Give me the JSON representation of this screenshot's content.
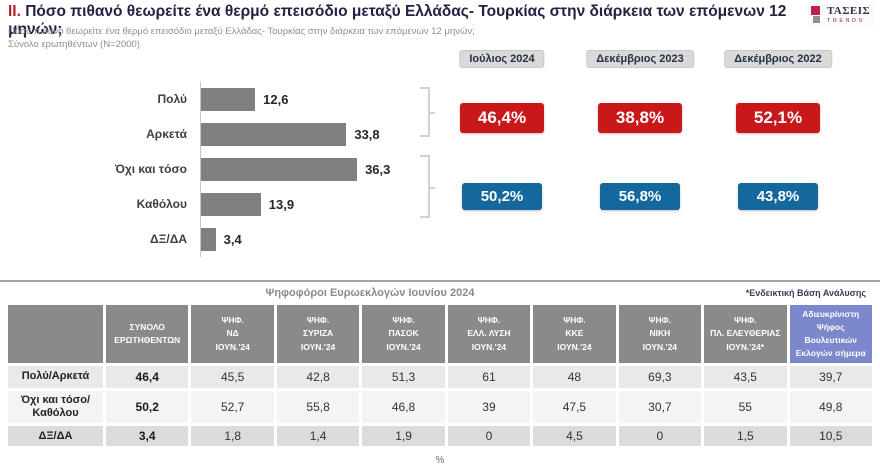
{
  "header": {
    "title_prefix": "II.",
    "title": "Πόσο πιθανό θεωρείτε ένα θερμό επεισόδιο μεταξύ Ελλάδας- Τουρκίας στην διάρκεια των επόμενων 12 μηνών;",
    "subtitle": "Πόσο πιθανό θεωρείτε ένα θερμό επεισόδιο μεταξύ Ελλάδας- Τουρκίας στην διάρκεια των επόμενων 12 μηνών;",
    "base_note": "Σύνολο ερωτηθέντων (N=2000)",
    "logo_title": "ΤΑΣΕΙΣ",
    "logo_subtitle": "TRENDS"
  },
  "chart_data": [
    {
      "type": "bar",
      "orientation": "horizontal",
      "categories": [
        "Πολύ",
        "Αρκετά",
        "Όχι και τόσο",
        "Καθόλου",
        "ΔΞ/ΔΑ"
      ],
      "values": [
        12.6,
        33.8,
        36.3,
        13.9,
        3.4
      ],
      "labels": [
        "12,6",
        "33,8",
        "36,3",
        "13,9",
        "3,4"
      ],
      "bar_color": "#7f7f7f",
      "xlim": [
        0,
        40
      ],
      "unit": "%",
      "groupings": [
        {
          "label": "Πολύ/Αρκετά",
          "sum": 46.4
        },
        {
          "label": "Όχι και τόσο/Καθόλου",
          "sum": 50.2
        }
      ]
    },
    {
      "type": "bar",
      "subtype": "kpi-badges",
      "categories": [
        "Ιούλιος 2024",
        "Δεκέμβριος 2023",
        "Δεκέμβριος 2022"
      ],
      "series": [
        {
          "name": "Πολύ/Αρκετά",
          "color": "#c9181a",
          "values": [
            46.4,
            38.8,
            52.1
          ],
          "labels": [
            "46,4%",
            "38,8%",
            "52,1%"
          ]
        },
        {
          "name": "Όχι και τόσο/Καθόλου",
          "color": "#15689c",
          "values": [
            50.2,
            56.8,
            43.8
          ],
          "labels": [
            "50,2%",
            "56,8%",
            "43,8%"
          ]
        }
      ]
    },
    {
      "type": "table",
      "title": "Ψηφοφόροι Ευρωεκλογών Ιουνίου 2024",
      "note": "*Ενδεικτική Βάση Ανάλυσης",
      "header_lines": [
        [
          "ΣΥΝΟΛΟ",
          "ΕΡΩΤΗΘΕΝΤΩΝ"
        ],
        [
          "ΨΗΦ.",
          "ΝΔ",
          "ΙΟΥΝ.'24"
        ],
        [
          "ΨΗΦ.",
          "ΣΥΡΙΖΑ",
          "ΙΟΥΝ.'24"
        ],
        [
          "ΨΗΦ.",
          "ΠΑΣΟΚ",
          "ΙΟΥΝ.'24"
        ],
        [
          "ΨΗΦ.",
          "ΕΛΛ. ΛΥΣΗ",
          "ΙΟΥΝ.'24"
        ],
        [
          "ΨΗΦ.",
          "ΚΚΕ",
          "ΙΟΥΝ.'24"
        ],
        [
          "ΨΗΦ.",
          "ΝΙΚΗ",
          "ΙΟΥΝ.'24"
        ],
        [
          "ΨΗΦ.",
          "ΠΛ. ΕΛΕΥΘΕΡΙΑΣ",
          "ΙΟΥΝ.'24*"
        ],
        [
          "Αδιευκρίνιστη",
          "Ψήφος",
          "Βουλευτικών",
          "Εκλογών σήμερα"
        ]
      ],
      "highlight_last_column": true,
      "highlight_color": "#7d87cb",
      "rows": [
        {
          "label": "Πολύ/Αρκετά",
          "values": [
            "46,4",
            "45,5",
            "42,8",
            "51,3",
            "61",
            "48",
            "69,3",
            "43,5",
            "39,7"
          ]
        },
        {
          "label": "Όχι και τόσο/Καθόλου",
          "values": [
            "50,2",
            "52,7",
            "55,8",
            "46,8",
            "39",
            "47,5",
            "30,7",
            "55",
            "49,8"
          ]
        },
        {
          "label": "ΔΞ/ΔΑ",
          "values": [
            "3,4",
            "1,8",
            "1,4",
            "1,9",
            "0",
            "4,5",
            "0",
            "1,5",
            "10,5"
          ]
        }
      ]
    }
  ],
  "footer": {
    "unit_note": "%"
  }
}
